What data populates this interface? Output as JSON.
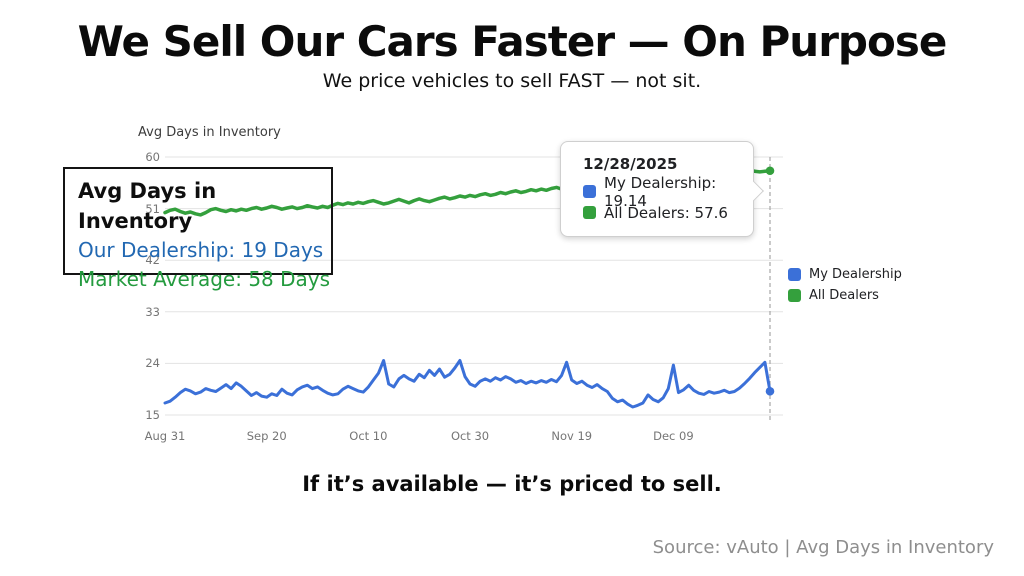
{
  "header": {
    "title": "We Sell Our Cars Faster — On Purpose",
    "subtitle": "We price vehicles to sell FAST — not sit."
  },
  "annotation": {
    "title": "Avg Days in Inventory",
    "line1": "Our Dealership: 19 Days",
    "line2": "Market Average: 58 Days",
    "line1_color": "#2268b2",
    "line2_color": "#249b3f"
  },
  "tooltip": {
    "date": "12/28/2025",
    "rows": [
      {
        "text": "My Dealership: 19.14",
        "color": "#3b70d8"
      },
      {
        "text": "All Dealers: 57.6",
        "color": "#34a03d"
      }
    ]
  },
  "legend": {
    "items": [
      {
        "label": "My Dealership",
        "color": "#3b70d8"
      },
      {
        "label": "All Dealers",
        "color": "#34a03d"
      }
    ]
  },
  "footer": {
    "tagline": "If it’s available — it’s priced to sell.",
    "source": "Source: vAuto | Avg Days in Inventory"
  },
  "chart_data": {
    "type": "line",
    "axis_title": "Avg Days in Inventory",
    "ylim": [
      15,
      60
    ],
    "yticks": [
      "60",
      "51",
      "42",
      "33",
      "24",
      "15"
    ],
    "ytick_values": [
      60,
      51,
      42,
      33,
      24,
      15
    ],
    "xticks": [
      "Aug 31",
      "Sep 20",
      "Oct 10",
      "Oct 30",
      "Nov 19",
      "Dec 09"
    ],
    "xtick_day_interval": 20,
    "x_start": "Aug 31",
    "x_end_date": "12/28/2025",
    "x_interval": "daily",
    "grid": true,
    "legend_position": "right",
    "crosshair": {
      "style": "dashed",
      "color": "#a6a6a6",
      "at_last_point": true
    },
    "series": [
      {
        "name": "My Dealership",
        "color": "#3b70d8",
        "width": 3,
        "last_value": 19.14,
        "values": [
          17.1,
          17.4,
          18.1,
          18.9,
          19.5,
          19.2,
          18.7,
          19.0,
          19.6,
          19.3,
          19.1,
          19.7,
          20.3,
          19.6,
          20.6,
          20.0,
          19.2,
          18.4,
          18.9,
          18.3,
          18.1,
          18.7,
          18.4,
          19.5,
          18.8,
          18.5,
          19.4,
          19.9,
          20.2,
          19.6,
          19.9,
          19.3,
          18.8,
          18.5,
          18.7,
          19.5,
          20.0,
          19.6,
          19.2,
          19.0,
          19.9,
          21.1,
          22.3,
          24.5,
          20.4,
          19.9,
          21.3,
          21.9,
          21.3,
          20.9,
          22.1,
          21.5,
          22.8,
          21.9,
          23.0,
          21.6,
          22.1,
          23.2,
          24.5,
          21.7,
          20.4,
          20.0,
          20.9,
          21.3,
          20.9,
          21.5,
          21.1,
          21.7,
          21.3,
          20.7,
          21.0,
          20.5,
          20.9,
          20.6,
          21.0,
          20.7,
          21.2,
          20.8,
          21.9,
          24.2,
          21.1,
          20.5,
          20.9,
          20.2,
          19.8,
          20.3,
          19.6,
          19.1,
          17.9,
          17.3,
          17.6,
          16.9,
          16.4,
          16.7,
          17.1,
          18.5,
          17.7,
          17.3,
          18.0,
          19.6,
          23.7,
          18.9,
          19.4,
          20.2,
          19.3,
          18.8,
          18.6,
          19.1,
          18.8,
          19.0,
          19.3,
          18.9,
          19.1,
          19.7,
          20.5,
          21.4,
          22.4,
          23.3,
          24.2,
          19.14
        ]
      },
      {
        "name": "All Dealers",
        "color": "#34a03d",
        "width": 3.5,
        "last_value": 57.6,
        "values": [
          50.3,
          50.7,
          50.9,
          50.5,
          50.2,
          50.4,
          50.1,
          49.9,
          50.3,
          50.8,
          51.0,
          50.7,
          50.5,
          50.8,
          50.6,
          50.9,
          50.7,
          51.0,
          51.2,
          50.9,
          51.1,
          51.4,
          51.2,
          50.9,
          51.1,
          51.3,
          51.0,
          51.2,
          51.5,
          51.3,
          51.1,
          51.4,
          51.2,
          51.6,
          51.9,
          51.7,
          52.0,
          51.8,
          52.1,
          51.9,
          52.2,
          52.4,
          52.1,
          51.8,
          52.0,
          52.3,
          52.6,
          52.3,
          52.0,
          52.4,
          52.7,
          52.4,
          52.2,
          52.5,
          52.8,
          53.0,
          52.7,
          52.9,
          53.2,
          53.0,
          53.3,
          53.1,
          53.4,
          53.6,
          53.3,
          53.5,
          53.8,
          53.6,
          53.9,
          54.1,
          53.8,
          54.0,
          54.3,
          54.1,
          54.4,
          54.2,
          54.5,
          54.7,
          54.4,
          54.6,
          54.9,
          54.7,
          55.0,
          55.2,
          54.9,
          55.1,
          55.4,
          55.2,
          55.5,
          55.3,
          55.6,
          55.8,
          55.5,
          55.7,
          56.0,
          55.8,
          56.1,
          56.3,
          56.0,
          56.2,
          56.5,
          56.3,
          56.6,
          56.4,
          56.7,
          56.9,
          56.6,
          56.8,
          57.1,
          56.9,
          57.2,
          57.4,
          57.1,
          57.3,
          57.6,
          57.8,
          57.5,
          57.4,
          57.5,
          57.6
        ]
      }
    ]
  }
}
